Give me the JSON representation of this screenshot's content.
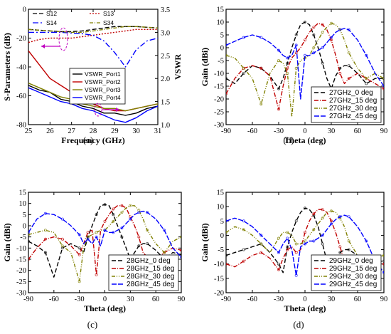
{
  "figure": {
    "panel_labels": [
      "(a)",
      "(b)",
      "(c)",
      "(d)"
    ]
  },
  "chart_data": [
    {
      "type": "line",
      "panel": "(a)",
      "xlabel": "Frequency (GHz)",
      "ylabel": "S-Parameters (dB)",
      "y2label": "VSWR",
      "xlim": [
        25,
        31
      ],
      "ylim": [
        -80,
        0
      ],
      "y2lim": [
        1.0,
        3.5
      ],
      "xticks": [
        "25",
        "26",
        "27",
        "28",
        "29",
        "30",
        "31"
      ],
      "yticks": [
        "-80",
        "-60",
        "-40",
        "-20",
        "0"
      ],
      "y2ticks": [
        "1.0",
        "1.5",
        "2.0",
        "2.5",
        "3.0",
        "3.5"
      ],
      "legend_top": [
        "S12",
        "S13",
        "S14",
        "S34"
      ],
      "legend_vswr": [
        "VSWR_Port1",
        "VSWR_Port2",
        "VSWR_Port3",
        "VSWR_Port4"
      ],
      "x": [
        25,
        25.5,
        26,
        26.5,
        27,
        27.5,
        28,
        28.5,
        29,
        29.5,
        30,
        30.5,
        31
      ],
      "series": [
        {
          "name": "S12",
          "axis": "left",
          "color": "#000000",
          "dash": "6,3",
          "values": [
            -14,
            -14.5,
            -15,
            -15.5,
            -15.5,
            -15,
            -14,
            -13,
            -12,
            -12,
            -12,
            -12.5,
            -13
          ]
        },
        {
          "name": "S13",
          "axis": "left",
          "color": "#c00000",
          "dash": "2,2",
          "values": [
            -23,
            -21,
            -20,
            -20,
            -20,
            -19,
            -18,
            -17,
            -16,
            -15,
            -14,
            -14,
            -14
          ]
        },
        {
          "name": "S14",
          "axis": "left",
          "color": "#0000ff",
          "dash": "8,3,2,3",
          "values": [
            -16,
            -16,
            -16,
            -16,
            -16.5,
            -17,
            -18,
            -22,
            -30,
            -40,
            -28,
            -22,
            -20
          ]
        },
        {
          "name": "S34",
          "axis": "left",
          "color": "#808000",
          "dash": "5,2,1,2",
          "values": [
            -14,
            -14.5,
            -15,
            -15.5,
            -16,
            -16,
            -15,
            -14,
            -13,
            -12,
            -12,
            -12.5,
            -13
          ]
        },
        {
          "name": "VSWR_Port1",
          "axis": "right",
          "color": "#000000",
          "dash": "",
          "values": [
            1.85,
            1.75,
            1.7,
            1.55,
            1.5,
            1.4,
            1.35,
            1.25,
            1.25,
            1.2,
            1.25,
            1.35,
            1.4
          ]
        },
        {
          "name": "VSWR_Port2",
          "axis": "right",
          "color": "#c00000",
          "dash": "",
          "values": [
            2.6,
            2.3,
            2.0,
            1.85,
            1.7,
            1.55,
            1.45,
            1.35,
            1.3,
            1.3,
            1.35,
            1.4,
            1.45
          ]
        },
        {
          "name": "VSWR_Port3",
          "axis": "right",
          "color": "#808000",
          "dash": "",
          "values": [
            1.9,
            1.8,
            1.7,
            1.6,
            1.55,
            1.45,
            1.4,
            1.35,
            1.35,
            1.3,
            1.35,
            1.4,
            1.45
          ]
        },
        {
          "name": "VSWR_Port4",
          "axis": "right",
          "color": "#0000ff",
          "dash": "",
          "values": [
            1.8,
            1.7,
            1.6,
            1.5,
            1.45,
            1.35,
            1.3,
            1.2,
            1.1,
            1.05,
            1.15,
            1.3,
            1.4
          ]
        }
      ]
    },
    {
      "type": "line",
      "panel": "(b)",
      "xlabel": "Theta (deg)",
      "ylabel": "Gain (dBi)",
      "xlim": [
        -90,
        90
      ],
      "ylim": [
        -30,
        15
      ],
      "xticks": [
        "-90",
        "-60",
        "-30",
        "0",
        "30",
        "60",
        "90"
      ],
      "yticks": [
        "-30",
        "-25",
        "-20",
        "-15",
        "-10",
        "-5",
        "0",
        "5",
        "10",
        "15"
      ],
      "x": [
        -90,
        -80,
        -70,
        -60,
        -50,
        -40,
        -30,
        -25,
        -20,
        -15,
        -10,
        -5,
        0,
        5,
        10,
        15,
        20,
        25,
        30,
        35,
        40,
        45,
        50,
        60,
        70,
        80,
        90
      ],
      "series": [
        {
          "name": "27GHz_0 deg",
          "color": "#000000",
          "values": [
            -12,
            -14,
            -10,
            -7,
            -8,
            -11,
            -16,
            -12,
            -6,
            0,
            5,
            9,
            10,
            9,
            5,
            0,
            -6,
            -12,
            -16,
            -11,
            -8,
            -7,
            -7,
            -10,
            -14,
            -12,
            -12
          ]
        },
        {
          "name": "27GHz_15 deg",
          "color": "#c00000",
          "values": [
            -18,
            -12,
            -8,
            -7,
            -8,
            -11,
            -24,
            -15,
            -8,
            -4,
            -2,
            0,
            3,
            6,
            8,
            9.5,
            9,
            7,
            3,
            -3,
            -10,
            -14,
            -12,
            -10,
            -12,
            -14,
            -16
          ]
        },
        {
          "name": "27GHz_30 deg",
          "color": "#808000",
          "values": [
            -3,
            -4,
            -8,
            -12,
            -22,
            -10,
            -5,
            -6,
            -10,
            -27,
            -8,
            -5,
            -4,
            -3,
            0,
            3,
            6,
            8,
            9.5,
            9,
            7,
            3,
            -2,
            -8,
            -12,
            -10,
            -12
          ]
        },
        {
          "name": "27GHz_45 deg",
          "color": "#0000ff",
          "values": [
            1,
            2.5,
            4,
            5,
            4,
            2,
            -1,
            -3,
            -4,
            -3,
            1,
            -20,
            -3,
            -3,
            -2,
            -1,
            0,
            2,
            4,
            6,
            7,
            7.5,
            7,
            3,
            -3,
            -10,
            -15
          ]
        }
      ]
    },
    {
      "type": "line",
      "panel": "(c)",
      "xlabel": "Theta (deg)",
      "ylabel": "Gain (dBi)",
      "xlim": [
        -90,
        90
      ],
      "ylim": [
        -30,
        15
      ],
      "xticks": [
        "-90",
        "-60",
        "-30",
        "0",
        "30",
        "60",
        "90"
      ],
      "yticks": [
        "-30",
        "-25",
        "-20",
        "-15",
        "-10",
        "-5",
        "0",
        "5",
        "10",
        "15"
      ],
      "x": [
        -90,
        -80,
        -70,
        -60,
        -50,
        -40,
        -30,
        -25,
        -20,
        -15,
        -10,
        -5,
        0,
        5,
        10,
        15,
        20,
        25,
        30,
        35,
        40,
        45,
        50,
        60,
        70,
        80,
        90
      ],
      "series": [
        {
          "name": "28GHz_0 deg",
          "color": "#000000",
          "values": [
            -7,
            -9,
            -12,
            -23,
            -10,
            -8,
            -10,
            -12,
            -5,
            0,
            5,
            9,
            9.5,
            9,
            5,
            0,
            -5,
            -10,
            -15,
            -12,
            -9,
            -8,
            -8,
            -11,
            -15,
            -12,
            -13
          ]
        },
        {
          "name": "28GHz_15 deg",
          "color": "#c00000",
          "values": [
            -15,
            -10,
            -6,
            -5,
            -6,
            -9,
            -13,
            -8,
            -3,
            -2,
            -22,
            -2,
            2,
            5,
            7.5,
            9,
            9,
            8,
            4,
            0,
            -5,
            -12,
            -14,
            -15,
            -12,
            -10,
            -11
          ]
        },
        {
          "name": "28GHz_30 deg",
          "color": "#808000",
          "values": [
            -4,
            -3,
            -2,
            -3,
            -9,
            -12,
            -25,
            -10,
            -5,
            -4,
            -3,
            -2,
            -2,
            0,
            2,
            4,
            6,
            8,
            9,
            9,
            7,
            3,
            -2,
            -8,
            -12,
            -7,
            -5
          ]
        },
        {
          "name": "28GHz_45 deg",
          "color": "#0000ff",
          "values": [
            -3,
            3,
            5.5,
            5,
            3,
            0,
            -4,
            -8,
            -6,
            -8,
            -5,
            -9,
            -2,
            -3,
            -3,
            -2,
            -1,
            1,
            3,
            5,
            6,
            6.5,
            6,
            3,
            -2,
            -10,
            -14
          ]
        }
      ]
    },
    {
      "type": "line",
      "panel": "(d)",
      "xlabel": "Theta (deg)",
      "ylabel": "Gain (dBi)",
      "xlim": [
        -90,
        90
      ],
      "ylim": [
        -20,
        15
      ],
      "xticks": [
        "-90",
        "-60",
        "-30",
        "0",
        "30",
        "60",
        "90"
      ],
      "yticks": [
        "-20",
        "-15",
        "-10",
        "-5",
        "0",
        "5",
        "10",
        "15"
      ],
      "x": [
        -90,
        -80,
        -70,
        -60,
        -50,
        -40,
        -30,
        -25,
        -20,
        -15,
        -10,
        -5,
        0,
        5,
        10,
        15,
        20,
        25,
        30,
        35,
        40,
        45,
        50,
        60,
        70,
        80,
        90
      ],
      "series": [
        {
          "name": "29GHz_0 deg",
          "color": "#000000",
          "values": [
            -7,
            -6,
            -5,
            -4,
            -3,
            -6,
            -10,
            -13,
            -4,
            1,
            5,
            8,
            9.5,
            9,
            7,
            3,
            -3,
            -9,
            -12,
            -9,
            -6,
            -5,
            -5,
            -7,
            -10,
            -9,
            -9
          ]
        },
        {
          "name": "29GHz_15 deg",
          "color": "#c00000",
          "values": [
            -10,
            -11,
            -9,
            -7,
            -6,
            -8,
            -12,
            -8,
            -5,
            -4,
            -6,
            -5,
            1,
            5,
            7.5,
            9,
            9,
            8,
            5,
            1,
            -4,
            -9,
            -11,
            -14,
            -11,
            -10,
            -10
          ]
        },
        {
          "name": "29GHz_30 deg",
          "color": "#808000",
          "values": [
            1,
            3,
            2,
            0,
            -3,
            -6,
            -1,
            1,
            1,
            0,
            -3,
            -3,
            -2,
            0,
            2,
            4,
            6,
            8,
            8.5,
            8,
            6,
            3,
            -2,
            -7,
            -10,
            -8,
            -7
          ]
        },
        {
          "name": "29GHz_45 deg",
          "color": "#0000ff",
          "values": [
            5,
            6,
            5,
            3,
            0,
            -3,
            -6,
            -3,
            -1,
            -5,
            -14,
            -4,
            -3,
            -2,
            -2,
            -1,
            0,
            2,
            4,
            5.5,
            6.5,
            7,
            6.5,
            3,
            -2,
            -9,
            -13
          ]
        }
      ]
    }
  ]
}
